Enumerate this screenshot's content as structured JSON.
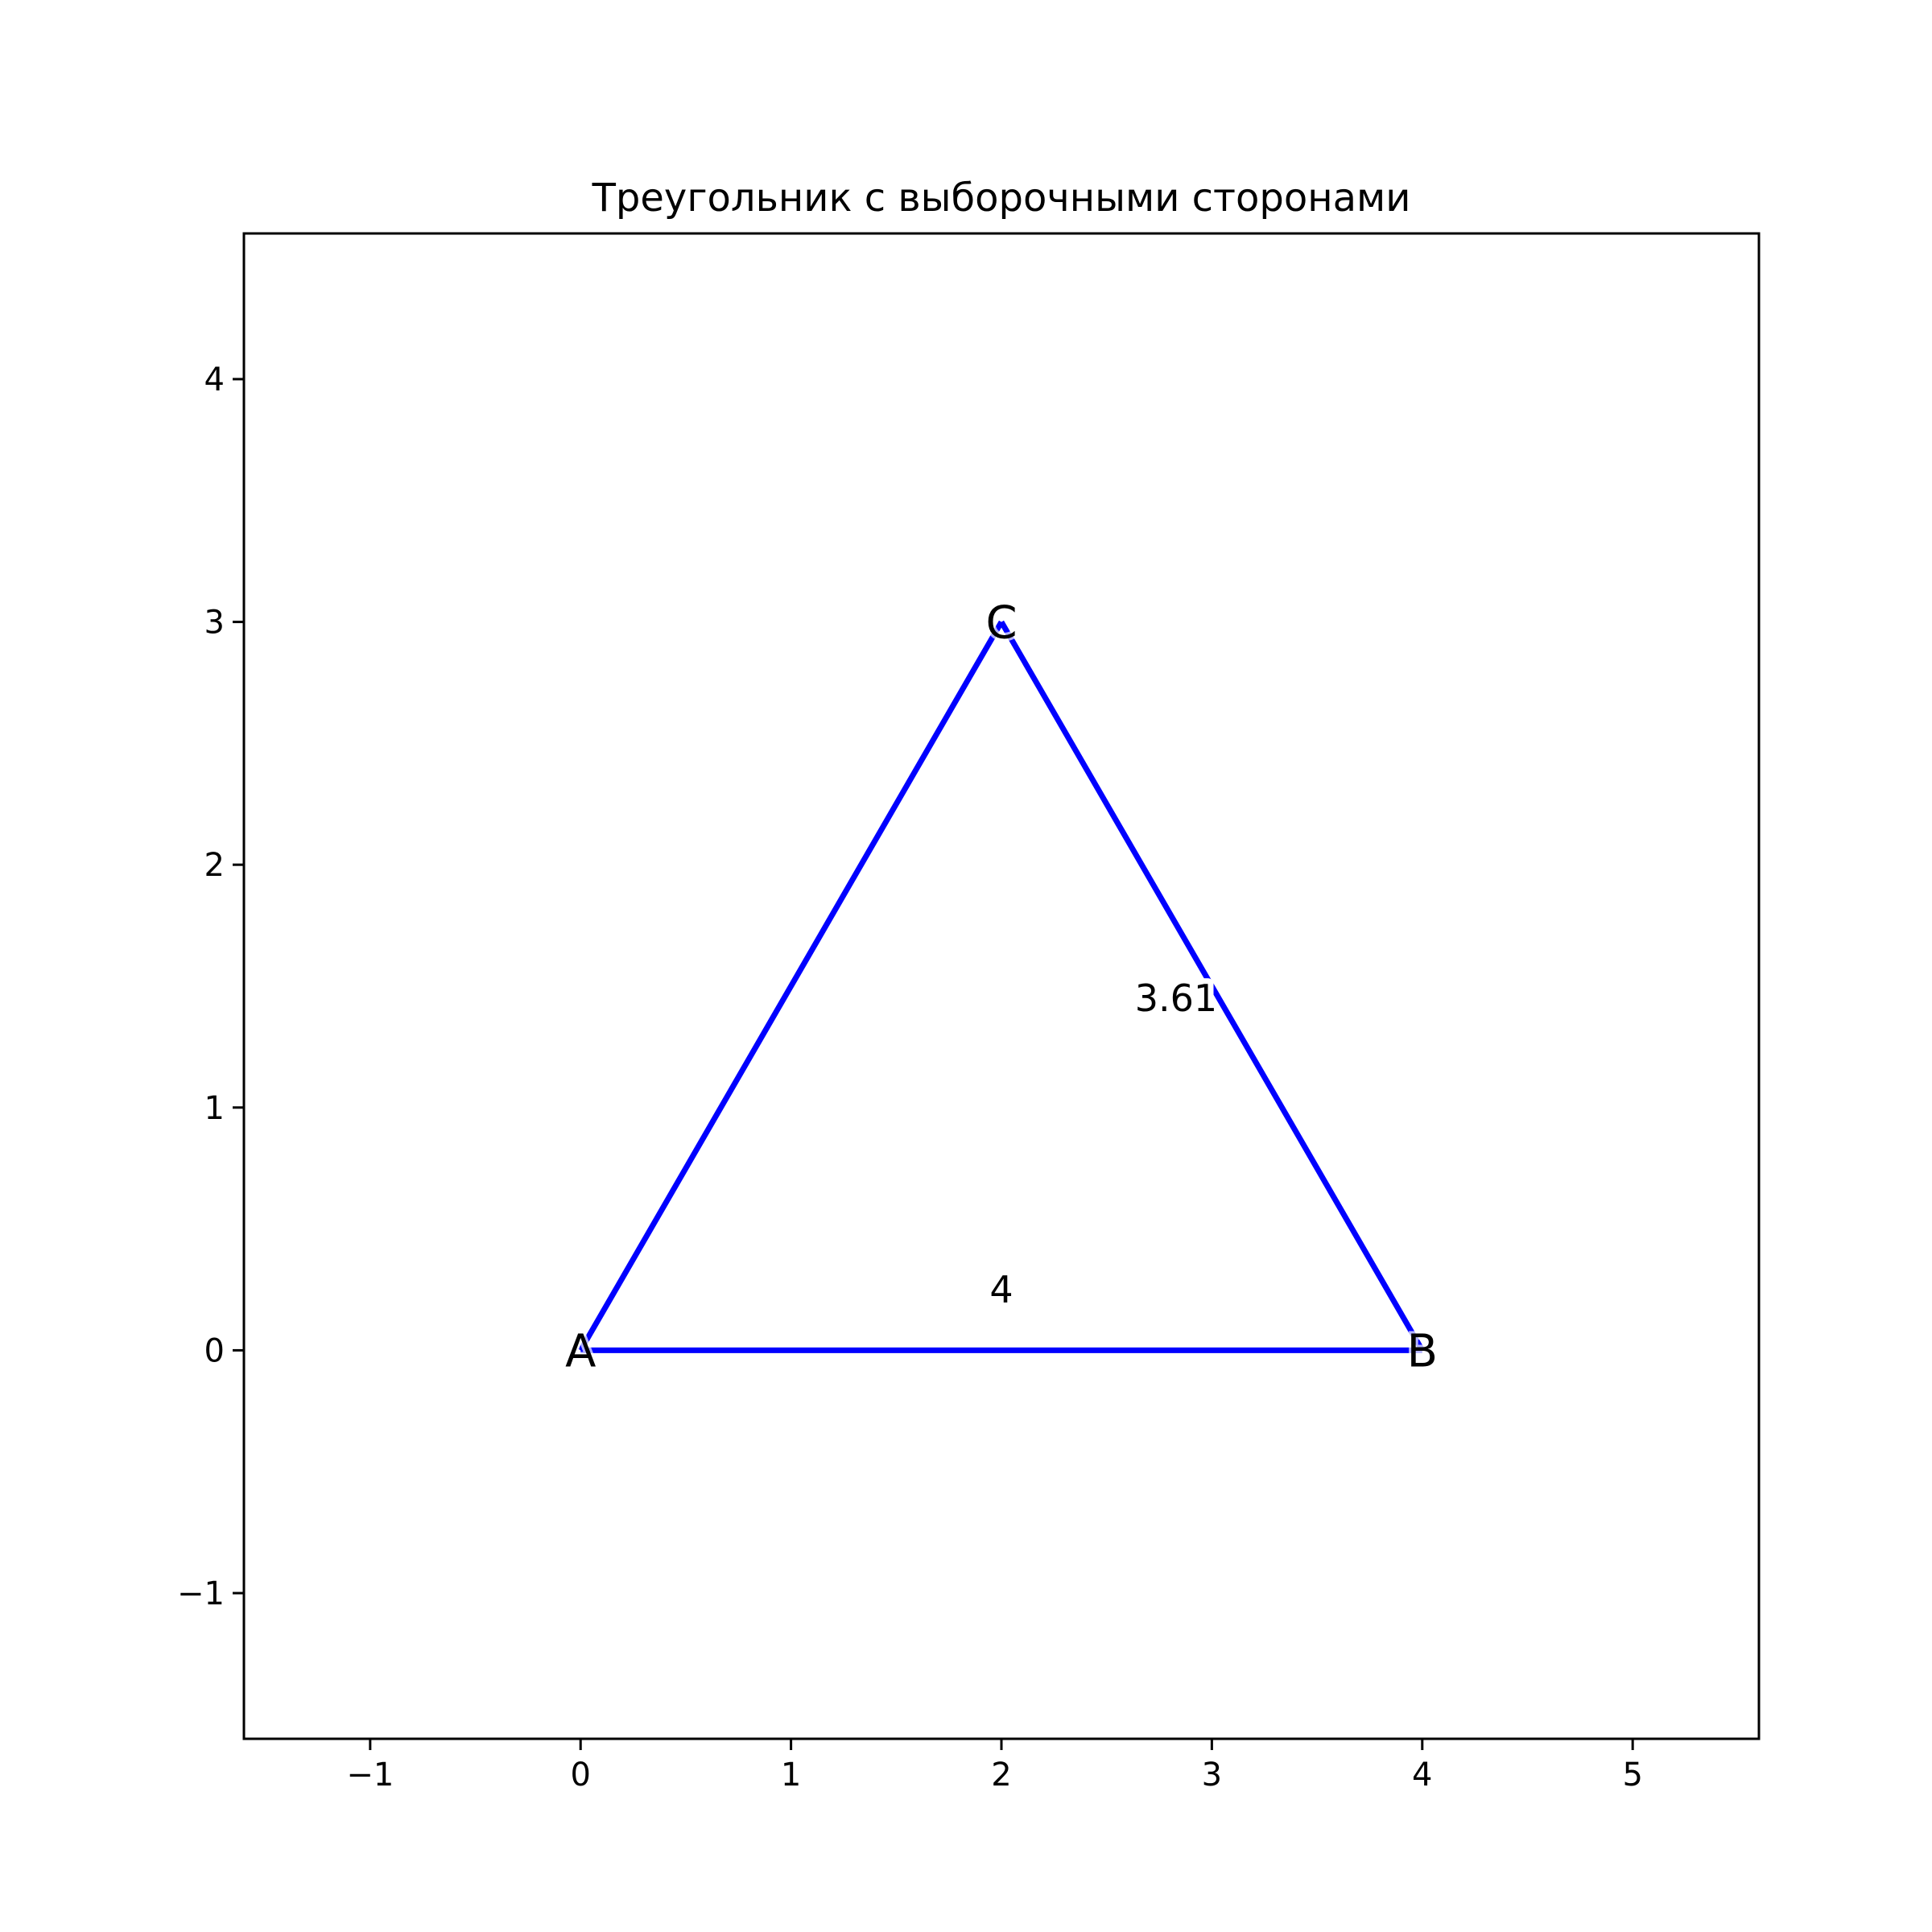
{
  "chart_data": {
    "type": "line",
    "title": "Треугольник с выборочными сторонами",
    "xlabel": "",
    "ylabel": "",
    "xlim": [
      -1.6,
      5.6
    ],
    "ylim": [
      -1.6,
      4.6
    ],
    "xticks": [
      -1,
      0,
      1,
      2,
      3,
      4,
      5
    ],
    "yticks": [
      -1,
      0,
      1,
      2,
      3,
      4
    ],
    "xtick_labels": [
      "−1",
      "0",
      "1",
      "2",
      "3",
      "4",
      "5"
    ],
    "ytick_labels": [
      "−1",
      "0",
      "1",
      "2",
      "3",
      "4"
    ],
    "grid": false,
    "line_color": "#0000ff",
    "vertices": [
      {
        "label": "A",
        "x": 0,
        "y": 0
      },
      {
        "label": "B",
        "x": 4,
        "y": 0
      },
      {
        "label": "C",
        "x": 2,
        "y": 3
      }
    ],
    "sides": [
      {
        "from": "A",
        "to": "B",
        "label": "4",
        "label_x": 2,
        "label_y": 0.25
      },
      {
        "from": "B",
        "to": "C",
        "label": "3.61",
        "label_x": 2.83,
        "label_y": 1.45
      },
      {
        "from": "C",
        "to": "A",
        "label": "",
        "label_x": null,
        "label_y": null
      }
    ]
  }
}
